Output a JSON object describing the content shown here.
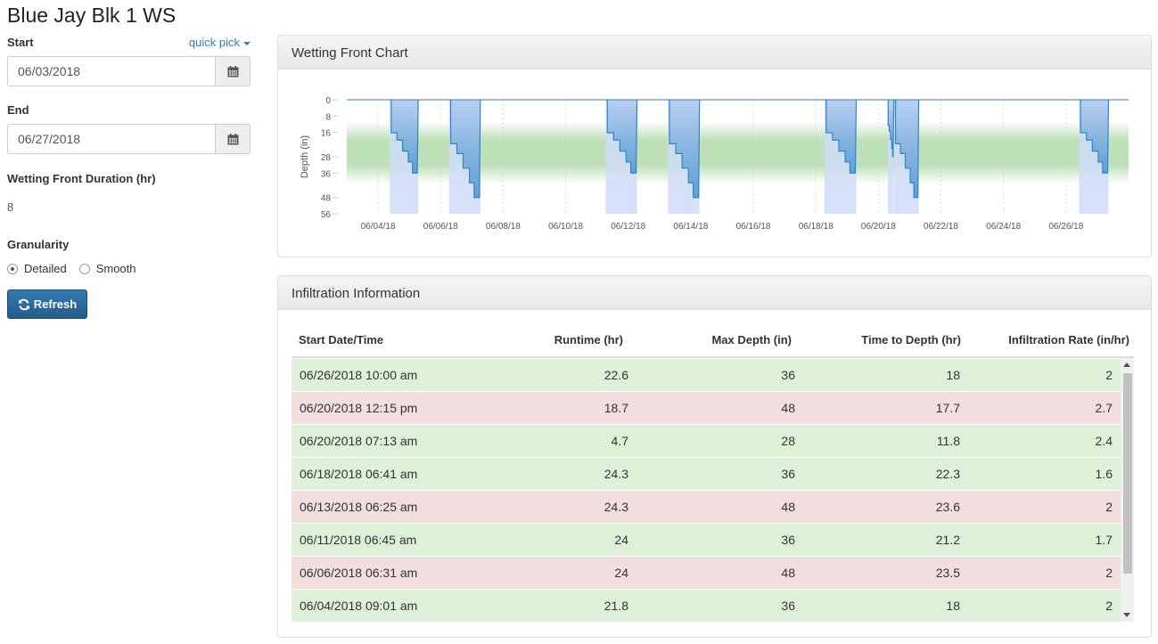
{
  "title": "Blue Jay Blk 1 WS",
  "controls": {
    "start_label": "Start",
    "quick_pick": "quick pick",
    "start_value": "06/03/2018",
    "end_label": "End",
    "end_value": "06/27/2018",
    "duration_label": "Wetting Front Duration (hr)",
    "duration_value": "8",
    "granularity_label": "Granularity",
    "granularity_options": [
      "Detailed",
      "Smooth"
    ],
    "granularity_selected": "Detailed",
    "refresh_label": "Refresh"
  },
  "chart_panel": {
    "title": "Wetting Front Chart"
  },
  "chart_data": {
    "type": "area",
    "ylabel": "Depth (in)",
    "y_ticks": [
      0,
      8,
      16,
      28,
      36,
      48,
      56
    ],
    "y_range": [
      0,
      56
    ],
    "y_reversed": true,
    "x_range": [
      "06/03/2018",
      "06/28/2018"
    ],
    "x_ticks": [
      "06/04/18",
      "06/06/18",
      "06/08/18",
      "06/10/18",
      "06/12/18",
      "06/14/18",
      "06/16/18",
      "06/18/18",
      "06/20/18",
      "06/22/18",
      "06/24/18",
      "06/26/18"
    ],
    "target_zone_in": [
      16,
      36
    ],
    "colors": {
      "area": "#5b9bd5",
      "line": "#2e86c1",
      "highlight": "#cfdcf8",
      "zone": "#a8d6a0"
    },
    "events": [
      {
        "start": "06/04/2018 09:01",
        "end": "06/05/2018 06:49",
        "max_depth": 36
      },
      {
        "start": "06/06/2018 06:31",
        "end": "06/07/2018 06:31",
        "max_depth": 48
      },
      {
        "start": "06/11/2018 06:45",
        "end": "06/12/2018 06:45",
        "max_depth": 36
      },
      {
        "start": "06/13/2018 06:25",
        "end": "06/14/2018 06:43",
        "max_depth": 48
      },
      {
        "start": "06/18/2018 06:41",
        "end": "06/19/2018 06:59",
        "max_depth": 36
      },
      {
        "start": "06/20/2018 07:13",
        "end": "06/20/2018 11:55",
        "max_depth": 28
      },
      {
        "start": "06/20/2018 12:15",
        "end": "06/21/2018 06:57",
        "max_depth": 48
      },
      {
        "start": "06/26/2018 10:00",
        "end": "06/27/2018 08:36",
        "max_depth": 36
      }
    ]
  },
  "table": {
    "title": "Infiltration Information",
    "columns": [
      "Start Date/Time",
      "Runtime (hr)",
      "Max Depth (in)",
      "Time to Depth (hr)",
      "Infiltration Rate (in/hr)"
    ],
    "rows": [
      {
        "start": "06/26/2018 10:00 am",
        "runtime": "22.6",
        "max_depth": "36",
        "time_to_depth": "18",
        "rate": "2",
        "status": "ok"
      },
      {
        "start": "06/20/2018 12:15 pm",
        "runtime": "18.7",
        "max_depth": "48",
        "time_to_depth": "17.7",
        "rate": "2.7",
        "status": "bad"
      },
      {
        "start": "06/20/2018 07:13 am",
        "runtime": "4.7",
        "max_depth": "28",
        "time_to_depth": "11.8",
        "rate": "2.4",
        "status": "ok"
      },
      {
        "start": "06/18/2018 06:41 am",
        "runtime": "24.3",
        "max_depth": "36",
        "time_to_depth": "22.3",
        "rate": "1.6",
        "status": "ok"
      },
      {
        "start": "06/13/2018 06:25 am",
        "runtime": "24.3",
        "max_depth": "48",
        "time_to_depth": "23.6",
        "rate": "2",
        "status": "bad"
      },
      {
        "start": "06/11/2018 06:45 am",
        "runtime": "24",
        "max_depth": "36",
        "time_to_depth": "21.2",
        "rate": "1.7",
        "status": "ok"
      },
      {
        "start": "06/06/2018 06:31 am",
        "runtime": "24",
        "max_depth": "48",
        "time_to_depth": "23.5",
        "rate": "2",
        "status": "bad"
      },
      {
        "start": "06/04/2018 09:01 am",
        "runtime": "21.8",
        "max_depth": "36",
        "time_to_depth": "18",
        "rate": "2",
        "status": "ok"
      }
    ]
  }
}
